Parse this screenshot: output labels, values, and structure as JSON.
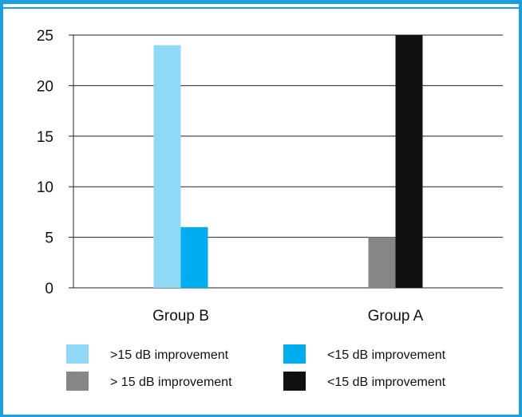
{
  "chart_data": {
    "type": "bar",
    "categories": [
      "Group B",
      "Group A"
    ],
    "series": [
      {
        "name": ">15 dB improvement",
        "values": [
          24,
          0
        ],
        "color": "#8fd9f7"
      },
      {
        "name": "<15 dB improvement",
        "values": [
          6,
          0
        ],
        "color": "#00aeef"
      },
      {
        "name": "> 15 dB improvement",
        "values": [
          0,
          5
        ],
        "color": "#848688"
      },
      {
        "name": "<15 dB improvement",
        "values": [
          0,
          25
        ],
        "color": "#111111"
      }
    ],
    "yticks": [
      0,
      5,
      10,
      15,
      20,
      25
    ],
    "ylim": [
      0,
      25
    ],
    "grid": true,
    "legend_position": "bottom",
    "frame_color": "#1aa0dc"
  }
}
